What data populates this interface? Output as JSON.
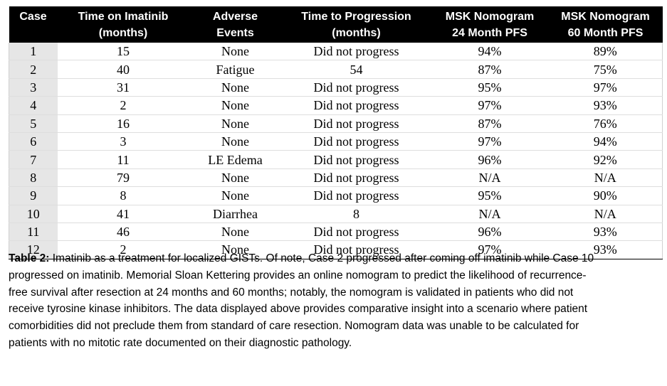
{
  "table": {
    "headers": [
      [
        "Case"
      ],
      [
        "Time on Imatinib",
        "(months)"
      ],
      [
        "Adverse",
        "Events"
      ],
      [
        "Time to Progression",
        "(months)"
      ],
      [
        "MSK Nomogram",
        "24 Month PFS"
      ],
      [
        "MSK Nomogram",
        "60 Month PFS"
      ]
    ],
    "rows": [
      [
        "1",
        "15",
        "None",
        "Did not progress",
        "94%",
        "89%"
      ],
      [
        "2",
        "40",
        "Fatigue",
        "54",
        "87%",
        "75%"
      ],
      [
        "3",
        "31",
        "None",
        "Did not progress",
        "95%",
        "97%"
      ],
      [
        "4",
        "2",
        "None",
        "Did not progress",
        "97%",
        "93%"
      ],
      [
        "5",
        "16",
        "None",
        "Did not progress",
        "87%",
        "76%"
      ],
      [
        "6",
        "3",
        "None",
        "Did not progress",
        "97%",
        "94%"
      ],
      [
        "7",
        "11",
        "LE Edema",
        "Did not progress",
        "96%",
        "92%"
      ],
      [
        "8",
        "79",
        "None",
        "Did not progress",
        "N/A",
        "N/A"
      ],
      [
        "9",
        "8",
        "None",
        "Did not progress",
        "95%",
        "90%"
      ],
      [
        "10",
        "41",
        "Diarrhea",
        "8",
        "N/A",
        "N/A"
      ],
      [
        "11",
        "46",
        "None",
        "Did not progress",
        "96%",
        "93%"
      ],
      [
        "12",
        "2",
        "None",
        "Did not progress",
        "97%",
        "93%"
      ]
    ]
  },
  "caption": {
    "label": "Table 2:",
    "text": " Imatinib as a treatment for localized GISTs. Of note, Case 2 progressed after coming off imatinib while Case 10 progressed on imatinib. Memorial Sloan Kettering provides an online nomogram to predict the likelihood of recurrence-free survival after resection at 24 months and 60 months; notably, the nomogram is validated in patients who did not receive tyrosine kinase inhibitors. The data displayed above provides comparative insight into a scenario where patient comorbidities did not preclude them from standard of care resection. Nomogram data was unable to be calculated for patients with no mitotic rate documented on their diagnostic pathology."
  }
}
